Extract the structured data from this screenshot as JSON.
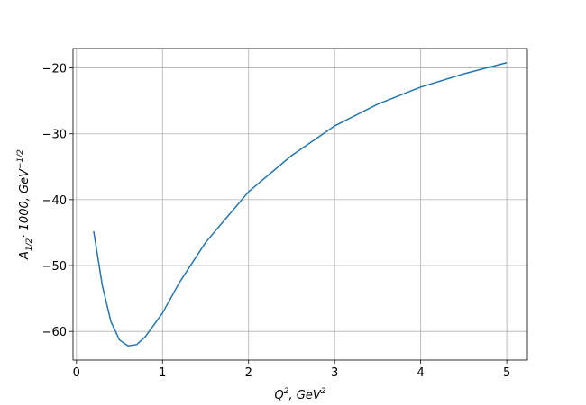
{
  "chart_data": {
    "type": "line",
    "xlabel": {
      "base": "Q",
      "sup": "2",
      "rest": ", GeV",
      "sup2": "2"
    },
    "ylabel": {
      "base": "A",
      "sub": "1/2",
      "rest": "· 1000, GeV",
      "sup": "−1/2"
    },
    "x": [
      0.2,
      0.3,
      0.4,
      0.5,
      0.6,
      0.7,
      0.8,
      1.0,
      1.2,
      1.5,
      2.0,
      2.5,
      3.0,
      3.5,
      4.0,
      4.5,
      5.0
    ],
    "series": [
      {
        "color": "#1f77b4",
        "values": [
          -44.8,
          -53,
          -58.5,
          -61.3,
          -62.2,
          -62,
          -60.8,
          -57.2,
          -52.5,
          -46.5,
          -38.8,
          -33.3,
          -28.8,
          -25.5,
          -22.9,
          -20.9,
          -19.2
        ]
      }
    ],
    "xlim": [
      -0.04,
      5.24
    ],
    "ylim": [
      -64.35,
      -17.05
    ],
    "xticks": [
      0,
      1,
      2,
      3,
      4,
      5
    ],
    "yticks": [
      {
        "value": -60,
        "label": "−60"
      },
      {
        "value": -50,
        "label": "−50"
      },
      {
        "value": -40,
        "label": "−40"
      },
      {
        "value": -30,
        "label": "−30"
      },
      {
        "value": -20,
        "label": "−20"
      }
    ],
    "grid": true
  }
}
